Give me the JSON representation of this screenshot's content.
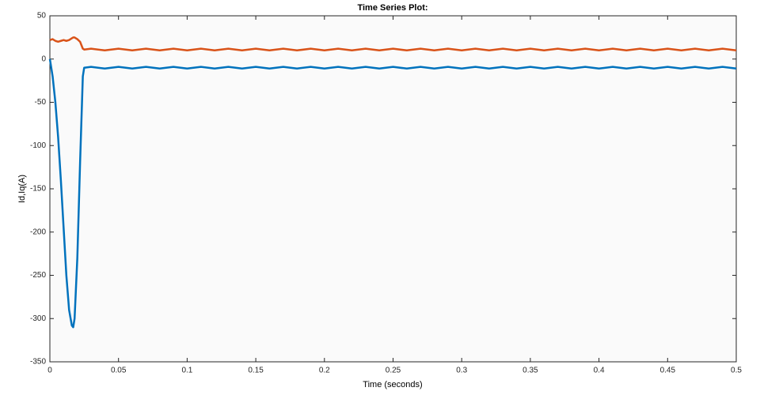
{
  "chart_data": {
    "type": "line",
    "title": "Time Series Plot:",
    "x_label": "Time (seconds)",
    "y_label": "Id,Iq(A)",
    "x": [
      0,
      0.002,
      0.004,
      0.006,
      0.008,
      0.01,
      0.012,
      0.014,
      0.016,
      0.017,
      0.018,
      0.02,
      0.022,
      0.024,
      0.025,
      0.03,
      0.04,
      0.05,
      0.06,
      0.07,
      0.08,
      0.09,
      0.1,
      0.11,
      0.12,
      0.13,
      0.14,
      0.15,
      0.16,
      0.17,
      0.18,
      0.19,
      0.2,
      0.21,
      0.22,
      0.23,
      0.24,
      0.25,
      0.26,
      0.27,
      0.28,
      0.29,
      0.3,
      0.31,
      0.32,
      0.33,
      0.34,
      0.35,
      0.36,
      0.37,
      0.38,
      0.39,
      0.4,
      0.41,
      0.42,
      0.43,
      0.44,
      0.45,
      0.46,
      0.47,
      0.48,
      0.49,
      0.5
    ],
    "series": [
      {
        "color": "#d95319",
        "values": [
          22,
          23,
          21,
          20,
          21,
          22,
          21,
          22,
          24,
          25,
          25,
          23,
          20,
          12,
          11,
          12,
          10,
          12,
          10,
          12,
          10,
          12,
          10,
          12,
          10,
          12,
          10,
          12,
          10,
          12,
          10,
          12,
          10,
          12,
          10,
          12,
          10,
          12,
          10,
          12,
          10,
          12,
          10,
          12,
          10,
          12,
          10,
          12,
          10,
          12,
          10,
          12,
          10,
          12,
          10,
          12,
          10,
          12,
          10,
          12,
          10,
          12,
          10
        ]
      },
      {
        "color": "#0072bd",
        "values": [
          0,
          -20,
          -50,
          -90,
          -140,
          -195,
          -250,
          -290,
          -308,
          -310,
          -300,
          -230,
          -120,
          -20,
          -10,
          -9,
          -11,
          -9,
          -11,
          -9,
          -11,
          -9,
          -11,
          -9,
          -11,
          -9,
          -11,
          -9,
          -11,
          -9,
          -11,
          -9,
          -11,
          -9,
          -11,
          -9,
          -11,
          -9,
          -11,
          -9,
          -11,
          -9,
          -11,
          -9,
          -11,
          -9,
          -11,
          -9,
          -11,
          -9,
          -11,
          -9,
          -11,
          -9,
          -11,
          -9,
          -11,
          -9,
          -11,
          -9,
          -11,
          -9,
          -11
        ]
      }
    ],
    "xlim": [
      0,
      0.5
    ],
    "xticks": [
      0,
      0.05,
      0.1,
      0.15,
      0.2,
      0.25,
      0.3,
      0.35,
      0.4,
      0.45,
      0.5
    ],
    "ylim": [
      -350,
      50
    ],
    "yticks": [
      -350,
      -300,
      -250,
      -200,
      -150,
      -100,
      -50,
      0,
      50
    ]
  }
}
